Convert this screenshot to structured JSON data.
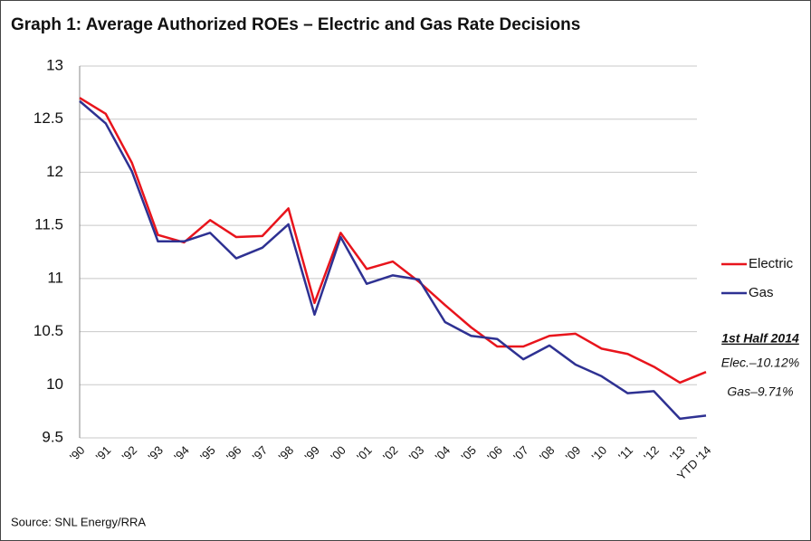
{
  "chart_data": {
    "type": "line",
    "title": "Graph 1: Average Authorized ROEs – Electric and Gas Rate Decisions",
    "categories": [
      "'90",
      "'91",
      "'92",
      "'93",
      "'94",
      "'95",
      "'96",
      "'97",
      "'98",
      "'99",
      "'00",
      "'01",
      "'02",
      "'03",
      "'04",
      "'05",
      "'06",
      "'07",
      "'08",
      "'09",
      "'10",
      "'11",
      "'12",
      "'13",
      "YTD '14"
    ],
    "series": [
      {
        "name": "Electric",
        "color": "#e8141c",
        "values": [
          12.7,
          12.55,
          12.09,
          11.41,
          11.34,
          11.55,
          11.39,
          11.4,
          11.66,
          10.77,
          11.43,
          11.09,
          11.16,
          10.97,
          10.75,
          10.54,
          10.36,
          10.36,
          10.46,
          10.48,
          10.34,
          10.29,
          10.17,
          10.02,
          10.12
        ]
      },
      {
        "name": "Gas",
        "color": "#2e3192",
        "values": [
          12.67,
          12.46,
          12.01,
          11.35,
          11.35,
          11.43,
          11.19,
          11.29,
          11.51,
          10.66,
          11.39,
          10.95,
          11.03,
          10.99,
          10.59,
          10.46,
          10.43,
          10.24,
          10.37,
          10.19,
          10.08,
          9.92,
          9.94,
          9.68,
          9.71
        ]
      }
    ],
    "ylim": [
      9.5,
      13
    ],
    "yticks": [
      9.5,
      10,
      10.5,
      11,
      11.5,
      12,
      12.5,
      13
    ],
    "grid": true,
    "legend": "right",
    "annotations": [
      "1st Half 2014",
      "Elec.–10.12%",
      "Gas–9.71%"
    ],
    "source": "Source: SNL Energy/RRA"
  }
}
